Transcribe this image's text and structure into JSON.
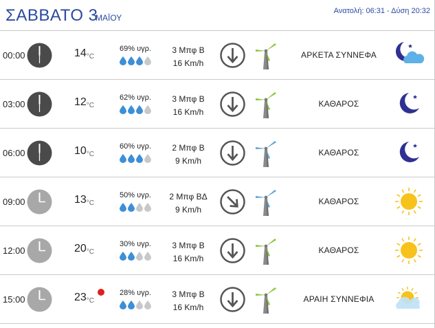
{
  "header": {
    "day": "ΣΑΒΒΑΤΟ 3",
    "month": "ΜΑΪΟΥ",
    "sun_times": "Ανατολή: 06:31 - Δύση 20:32"
  },
  "colors": {
    "accent": "#2b4aa0",
    "clock_night": "#4a4a4a",
    "clock_day": "#a8a8a8",
    "drop_filled": "#3d8fd6",
    "drop_empty": "#c5c9cc",
    "turbine_green": "#8cc63f",
    "turbine_blue": "#5fa6d6",
    "moon": "#2e3192",
    "sun": "#f7c21b",
    "hot_dot": "#e02020"
  },
  "rows": [
    {
      "time": "00:00",
      "clock_icon": "clock-night-icon",
      "temp": "14",
      "unit": "°C",
      "hum": "69% υγρ.",
      "drops": 3,
      "wind_line1": "3 Μπφ Β",
      "wind_line2": "16 Km/h",
      "wind_dir": "N",
      "turbine": "green",
      "condition": "ΑΡΚΕΤΑ ΣΥΝΝΕΦΑ",
      "weather_icon": "moon-cloud-icon",
      "hot": false
    },
    {
      "time": "03:00",
      "clock_icon": "clock-night-icon",
      "temp": "12",
      "unit": "°C",
      "hum": "62% υγρ.",
      "drops": 3,
      "wind_line1": "3 Μπφ Β",
      "wind_line2": "16 Km/h",
      "wind_dir": "N",
      "turbine": "green",
      "condition": "ΚΑΘΑΡΟΣ",
      "weather_icon": "moon-icon",
      "hot": false
    },
    {
      "time": "06:00",
      "clock_icon": "clock-night-icon",
      "temp": "10",
      "unit": "°C",
      "hum": "60% υγρ.",
      "drops": 3,
      "wind_line1": "2 Μπφ Β",
      "wind_line2": "9 Km/h",
      "wind_dir": "N",
      "turbine": "blue",
      "condition": "ΚΑΘΑΡΟΣ",
      "weather_icon": "moon-icon",
      "hot": false
    },
    {
      "time": "09:00",
      "clock_icon": "clock-day-icon",
      "temp": "13",
      "unit": "°C",
      "hum": "50% υγρ.",
      "drops": 2,
      "wind_line1": "2 Μπφ ΒΔ",
      "wind_line2": "9 Km/h",
      "wind_dir": "NW",
      "turbine": "blue",
      "condition": "ΚΑΘΑΡΟΣ",
      "weather_icon": "sun-icon",
      "hot": false
    },
    {
      "time": "12:00",
      "clock_icon": "clock-day-icon",
      "temp": "20",
      "unit": "°C",
      "hum": "30% υγρ.",
      "drops": 2,
      "wind_line1": "3 Μπφ Β",
      "wind_line2": "16 Km/h",
      "wind_dir": "N",
      "turbine": "green",
      "condition": "ΚΑΘΑΡΟΣ",
      "weather_icon": "sun-icon",
      "hot": false
    },
    {
      "time": "15:00",
      "clock_icon": "clock-day-icon",
      "temp": "23",
      "unit": "°C",
      "hum": "28% υγρ.",
      "drops": 2,
      "wind_line1": "3 Μπφ Β",
      "wind_line2": "16 Km/h",
      "wind_dir": "N",
      "turbine": "green",
      "condition": "ΑΡΑΙΗ ΣΥΝΝΕΦΙΑ",
      "weather_icon": "sun-cloud-icon",
      "hot": true
    }
  ]
}
